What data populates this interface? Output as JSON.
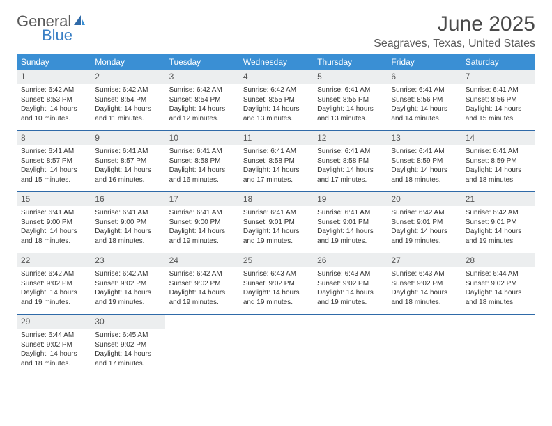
{
  "logo": {
    "text1": "General",
    "text2": "Blue"
  },
  "title": "June 2025",
  "location": "Seagraves, Texas, United States",
  "day_headers": [
    "Sunday",
    "Monday",
    "Tuesday",
    "Wednesday",
    "Thursday",
    "Friday",
    "Saturday"
  ],
  "colors": {
    "header_bg": "#3a8fd4",
    "header_text": "#ffffff",
    "divider": "#2f6aa8",
    "daynum_bg": "#eceeef",
    "logo_gray": "#5a5a5a",
    "logo_blue": "#3a7fc4"
  },
  "weeks": [
    [
      {
        "num": "1",
        "sunrise": "Sunrise: 6:42 AM",
        "sunset": "Sunset: 8:53 PM",
        "day1": "Daylight: 14 hours",
        "day2": "and 10 minutes."
      },
      {
        "num": "2",
        "sunrise": "Sunrise: 6:42 AM",
        "sunset": "Sunset: 8:54 PM",
        "day1": "Daylight: 14 hours",
        "day2": "and 11 minutes."
      },
      {
        "num": "3",
        "sunrise": "Sunrise: 6:42 AM",
        "sunset": "Sunset: 8:54 PM",
        "day1": "Daylight: 14 hours",
        "day2": "and 12 minutes."
      },
      {
        "num": "4",
        "sunrise": "Sunrise: 6:42 AM",
        "sunset": "Sunset: 8:55 PM",
        "day1": "Daylight: 14 hours",
        "day2": "and 13 minutes."
      },
      {
        "num": "5",
        "sunrise": "Sunrise: 6:41 AM",
        "sunset": "Sunset: 8:55 PM",
        "day1": "Daylight: 14 hours",
        "day2": "and 13 minutes."
      },
      {
        "num": "6",
        "sunrise": "Sunrise: 6:41 AM",
        "sunset": "Sunset: 8:56 PM",
        "day1": "Daylight: 14 hours",
        "day2": "and 14 minutes."
      },
      {
        "num": "7",
        "sunrise": "Sunrise: 6:41 AM",
        "sunset": "Sunset: 8:56 PM",
        "day1": "Daylight: 14 hours",
        "day2": "and 15 minutes."
      }
    ],
    [
      {
        "num": "8",
        "sunrise": "Sunrise: 6:41 AM",
        "sunset": "Sunset: 8:57 PM",
        "day1": "Daylight: 14 hours",
        "day2": "and 15 minutes."
      },
      {
        "num": "9",
        "sunrise": "Sunrise: 6:41 AM",
        "sunset": "Sunset: 8:57 PM",
        "day1": "Daylight: 14 hours",
        "day2": "and 16 minutes."
      },
      {
        "num": "10",
        "sunrise": "Sunrise: 6:41 AM",
        "sunset": "Sunset: 8:58 PM",
        "day1": "Daylight: 14 hours",
        "day2": "and 16 minutes."
      },
      {
        "num": "11",
        "sunrise": "Sunrise: 6:41 AM",
        "sunset": "Sunset: 8:58 PM",
        "day1": "Daylight: 14 hours",
        "day2": "and 17 minutes."
      },
      {
        "num": "12",
        "sunrise": "Sunrise: 6:41 AM",
        "sunset": "Sunset: 8:58 PM",
        "day1": "Daylight: 14 hours",
        "day2": "and 17 minutes."
      },
      {
        "num": "13",
        "sunrise": "Sunrise: 6:41 AM",
        "sunset": "Sunset: 8:59 PM",
        "day1": "Daylight: 14 hours",
        "day2": "and 18 minutes."
      },
      {
        "num": "14",
        "sunrise": "Sunrise: 6:41 AM",
        "sunset": "Sunset: 8:59 PM",
        "day1": "Daylight: 14 hours",
        "day2": "and 18 minutes."
      }
    ],
    [
      {
        "num": "15",
        "sunrise": "Sunrise: 6:41 AM",
        "sunset": "Sunset: 9:00 PM",
        "day1": "Daylight: 14 hours",
        "day2": "and 18 minutes."
      },
      {
        "num": "16",
        "sunrise": "Sunrise: 6:41 AM",
        "sunset": "Sunset: 9:00 PM",
        "day1": "Daylight: 14 hours",
        "day2": "and 18 minutes."
      },
      {
        "num": "17",
        "sunrise": "Sunrise: 6:41 AM",
        "sunset": "Sunset: 9:00 PM",
        "day1": "Daylight: 14 hours",
        "day2": "and 19 minutes."
      },
      {
        "num": "18",
        "sunrise": "Sunrise: 6:41 AM",
        "sunset": "Sunset: 9:01 PM",
        "day1": "Daylight: 14 hours",
        "day2": "and 19 minutes."
      },
      {
        "num": "19",
        "sunrise": "Sunrise: 6:41 AM",
        "sunset": "Sunset: 9:01 PM",
        "day1": "Daylight: 14 hours",
        "day2": "and 19 minutes."
      },
      {
        "num": "20",
        "sunrise": "Sunrise: 6:42 AM",
        "sunset": "Sunset: 9:01 PM",
        "day1": "Daylight: 14 hours",
        "day2": "and 19 minutes."
      },
      {
        "num": "21",
        "sunrise": "Sunrise: 6:42 AM",
        "sunset": "Sunset: 9:01 PM",
        "day1": "Daylight: 14 hours",
        "day2": "and 19 minutes."
      }
    ],
    [
      {
        "num": "22",
        "sunrise": "Sunrise: 6:42 AM",
        "sunset": "Sunset: 9:02 PM",
        "day1": "Daylight: 14 hours",
        "day2": "and 19 minutes."
      },
      {
        "num": "23",
        "sunrise": "Sunrise: 6:42 AM",
        "sunset": "Sunset: 9:02 PM",
        "day1": "Daylight: 14 hours",
        "day2": "and 19 minutes."
      },
      {
        "num": "24",
        "sunrise": "Sunrise: 6:42 AM",
        "sunset": "Sunset: 9:02 PM",
        "day1": "Daylight: 14 hours",
        "day2": "and 19 minutes."
      },
      {
        "num": "25",
        "sunrise": "Sunrise: 6:43 AM",
        "sunset": "Sunset: 9:02 PM",
        "day1": "Daylight: 14 hours",
        "day2": "and 19 minutes."
      },
      {
        "num": "26",
        "sunrise": "Sunrise: 6:43 AM",
        "sunset": "Sunset: 9:02 PM",
        "day1": "Daylight: 14 hours",
        "day2": "and 19 minutes."
      },
      {
        "num": "27",
        "sunrise": "Sunrise: 6:43 AM",
        "sunset": "Sunset: 9:02 PM",
        "day1": "Daylight: 14 hours",
        "day2": "and 18 minutes."
      },
      {
        "num": "28",
        "sunrise": "Sunrise: 6:44 AM",
        "sunset": "Sunset: 9:02 PM",
        "day1": "Daylight: 14 hours",
        "day2": "and 18 minutes."
      }
    ],
    [
      {
        "num": "29",
        "sunrise": "Sunrise: 6:44 AM",
        "sunset": "Sunset: 9:02 PM",
        "day1": "Daylight: 14 hours",
        "day2": "and 18 minutes."
      },
      {
        "num": "30",
        "sunrise": "Sunrise: 6:45 AM",
        "sunset": "Sunset: 9:02 PM",
        "day1": "Daylight: 14 hours",
        "day2": "and 17 minutes."
      },
      null,
      null,
      null,
      null,
      null
    ]
  ]
}
